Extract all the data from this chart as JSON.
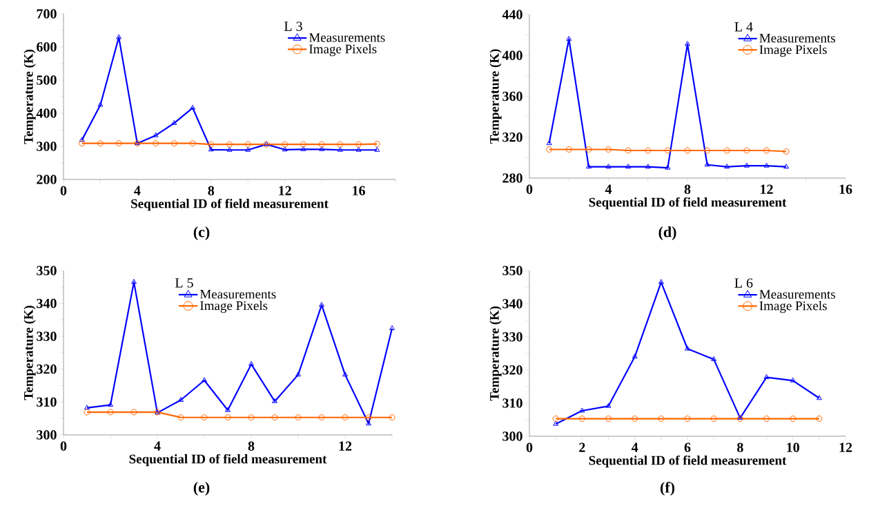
{
  "chart_data": [
    {
      "type": "line",
      "legend_title": "L 3",
      "xlabel": "Sequential ID of field measurement",
      "ylabel": "Temperature (K)",
      "annotations": [
        "(c)"
      ],
      "legend": "top right",
      "x": [
        1,
        2,
        3,
        4,
        5,
        6,
        7,
        8,
        9,
        10,
        11,
        12,
        13,
        14,
        15,
        16,
        17
      ],
      "xlim": [
        0,
        18
      ],
      "xticks": [
        0,
        {
          "value": 2,
          "label": null
        },
        4,
        {
          "value": 6,
          "label": null
        },
        8,
        {
          "value": 10,
          "label": null
        },
        12,
        {
          "value": 14,
          "label": null
        },
        16,
        {
          "value": 18,
          "label": null
        }
      ],
      "ylim": [
        200,
        700
      ],
      "yticks": [
        200,
        {
          "value": 250,
          "label": null
        },
        300,
        {
          "value": 350,
          "label": null
        },
        400,
        {
          "value": 450,
          "label": null
        },
        500,
        {
          "value": 550,
          "label": null
        },
        600,
        {
          "value": 650,
          "label": null
        },
        700
      ],
      "series": [
        {
          "name": "Measurements",
          "color": "#0000ff",
          "marker": "triangle",
          "values": [
            319,
            425,
            629,
            309,
            333,
            370,
            416,
            290,
            289,
            289,
            306,
            290,
            291,
            291,
            289,
            289,
            289
          ]
        },
        {
          "name": "Image Pixels",
          "color": "#ff6600",
          "marker": "circle",
          "values": [
            309,
            309,
            309,
            309,
            309,
            309,
            309,
            306,
            306,
            306,
            306,
            306,
            306,
            306,
            306,
            306,
            307
          ]
        }
      ]
    },
    {
      "type": "line",
      "legend_title": "L 4",
      "xlabel": "Sequential ID of field measurement",
      "ylabel": "Temperature (K)",
      "annotations": [
        "(d)"
      ],
      "legend": "top right",
      "x": [
        1,
        2,
        3,
        4,
        5,
        6,
        7,
        8,
        9,
        10,
        11,
        12,
        13
      ],
      "xlim": [
        0,
        16
      ],
      "xticks": [
        0,
        {
          "value": 2,
          "label": null
        },
        4,
        {
          "value": 6,
          "label": null
        },
        8,
        {
          "value": 10,
          "label": null
        },
        12,
        {
          "value": 14,
          "label": null
        },
        16
      ],
      "ylim": [
        280,
        440
      ],
      "yticks": [
        280,
        {
          "value": 300,
          "label": null
        },
        320,
        {
          "value": 340,
          "label": null
        },
        360,
        {
          "value": 380,
          "label": null
        },
        400,
        {
          "value": 420,
          "label": null
        },
        440
      ],
      "series": [
        {
          "name": "Measurements",
          "color": "#0000ff",
          "marker": "triangle",
          "values": [
            314,
            416,
            291,
            291,
            291,
            291,
            290,
            411,
            293,
            291,
            292,
            292,
            291
          ]
        },
        {
          "name": "Image Pixels",
          "color": "#ff6600",
          "marker": "circle",
          "values": [
            308,
            308,
            308,
            308,
            307,
            307,
            307,
            307,
            307,
            307,
            307,
            307,
            306
          ]
        }
      ]
    },
    {
      "type": "line",
      "legend_title": "L 5",
      "xlabel": "Sequential ID of field measurement",
      "ylabel": "Temperature (K)",
      "annotations": [
        "(e)"
      ],
      "legend": "top",
      "x": [
        1,
        2,
        3,
        4,
        5,
        6,
        7,
        8,
        9,
        10,
        11,
        12,
        13,
        14
      ],
      "xlim": [
        0,
        14
      ],
      "xticks": [
        0,
        {
          "value": 2,
          "label": null
        },
        4,
        {
          "value": 6,
          "label": null
        },
        8,
        {
          "value": 10,
          "label": null
        },
        12,
        {
          "value": 14,
          "label": null
        }
      ],
      "ylim": [
        300,
        350
      ],
      "yticks": [
        300,
        {
          "value": 305,
          "label": null
        },
        310,
        {
          "value": 315,
          "label": null
        },
        320,
        {
          "value": 325,
          "label": null
        },
        330,
        {
          "value": 335,
          "label": null
        },
        340,
        {
          "value": 345,
          "label": null
        },
        350
      ],
      "series": [
        {
          "name": "Measurements",
          "color": "#0000ff",
          "marker": "triangle",
          "values": [
            308.2,
            309.1,
            346.5,
            306.7,
            310.6,
            316.6,
            307.5,
            321.5,
            310.2,
            318.3,
            339.5,
            318.3,
            303.4,
            332.4
          ]
        },
        {
          "name": "Image Pixels",
          "color": "#ff6600",
          "marker": "circle",
          "values": [
            306.9,
            306.9,
            306.9,
            306.9,
            305.3,
            305.3,
            305.3,
            305.3,
            305.3,
            305.3,
            305.3,
            305.3,
            305.3,
            305.3
          ]
        }
      ]
    },
    {
      "type": "line",
      "legend_title": "L 6",
      "xlabel": "Sequential ID of field measurement",
      "ylabel": "Temperature (K)",
      "annotations": [
        "(f)"
      ],
      "legend": "top right",
      "x": [
        1,
        2,
        3,
        4,
        5,
        6,
        7,
        8,
        9,
        10,
        11
      ],
      "xlim": [
        0,
        12
      ],
      "xticks": [
        0,
        {
          "value": 1,
          "label": null
        },
        2,
        {
          "value": 3,
          "label": null
        },
        4,
        {
          "value": 5,
          "label": null
        },
        6,
        {
          "value": 7,
          "label": null
        },
        8,
        {
          "value": 9,
          "label": null
        },
        10,
        {
          "value": 11,
          "label": null
        },
        12
      ],
      "ylim": [
        300,
        350
      ],
      "yticks": [
        300,
        {
          "value": 305,
          "label": null
        },
        310,
        {
          "value": 315,
          "label": null
        },
        320,
        {
          "value": 325,
          "label": null
        },
        330,
        {
          "value": 335,
          "label": null
        },
        340,
        {
          "value": 345,
          "label": null
        },
        350
      ],
      "series": [
        {
          "name": "Measurements",
          "color": "#0000ff",
          "marker": "triangle",
          "values": [
            303.7,
            307.7,
            309.1,
            324.0,
            346.5,
            326.4,
            323.2,
            305.5,
            317.8,
            316.8,
            311.5
          ]
        },
        {
          "name": "Image Pixels",
          "color": "#ff6600",
          "marker": "circle",
          "values": [
            305.3,
            305.3,
            305.3,
            305.3,
            305.3,
            305.3,
            305.3,
            305.3,
            305.3,
            305.3,
            305.3
          ]
        }
      ]
    }
  ]
}
